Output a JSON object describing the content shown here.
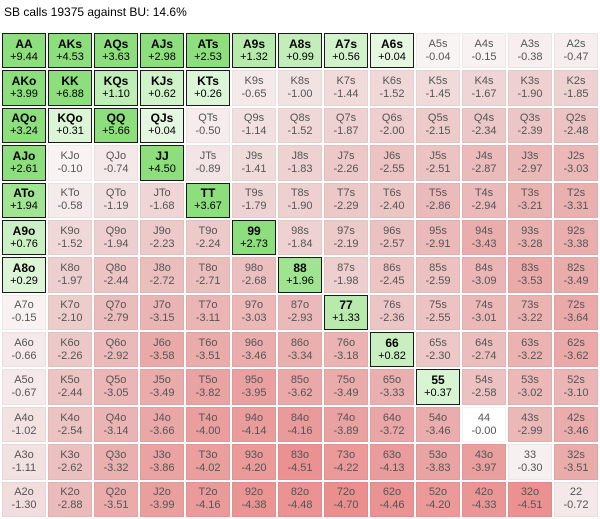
{
  "title": "SB calls 19375 against BU: 14.6%",
  "colors": {
    "positive_green": "#7ddc6a",
    "negative_red": "#e97d7d",
    "neutral": "#f7f0f0",
    "border": "#1a1a1a"
  },
  "grid": {
    "rows": [
      [
        {
          "hand": "AA",
          "ev": "+9.44"
        },
        {
          "hand": "AKs",
          "ev": "+4.53"
        },
        {
          "hand": "AQs",
          "ev": "+3.63"
        },
        {
          "hand": "AJs",
          "ev": "+2.98"
        },
        {
          "hand": "ATs",
          "ev": "+2.53"
        },
        {
          "hand": "A9s",
          "ev": "+1.32"
        },
        {
          "hand": "A8s",
          "ev": "+0.99"
        },
        {
          "hand": "A7s",
          "ev": "+0.56"
        },
        {
          "hand": "A6s",
          "ev": "+0.04"
        },
        {
          "hand": "A5s",
          "ev": "-0.04"
        },
        {
          "hand": "A4s",
          "ev": "-0.15"
        },
        {
          "hand": "A3s",
          "ev": "-0.38"
        },
        {
          "hand": "A2s",
          "ev": "-0.47"
        }
      ],
      [
        {
          "hand": "AKo",
          "ev": "+3.99"
        },
        {
          "hand": "KK",
          "ev": "+6.88"
        },
        {
          "hand": "KQs",
          "ev": "+1.10"
        },
        {
          "hand": "KJs",
          "ev": "+0.62"
        },
        {
          "hand": "KTs",
          "ev": "+0.26"
        },
        {
          "hand": "K9s",
          "ev": "-0.65"
        },
        {
          "hand": "K8s",
          "ev": "-1.00"
        },
        {
          "hand": "K7s",
          "ev": "-1.44"
        },
        {
          "hand": "K6s",
          "ev": "-1.52"
        },
        {
          "hand": "K5s",
          "ev": "-1.45"
        },
        {
          "hand": "K4s",
          "ev": "-1.67"
        },
        {
          "hand": "K3s",
          "ev": "-1.90"
        },
        {
          "hand": "K2s",
          "ev": "-1.85"
        }
      ],
      [
        {
          "hand": "AQo",
          "ev": "+3.24"
        },
        {
          "hand": "KQo",
          "ev": "+0.31"
        },
        {
          "hand": "QQ",
          "ev": "+5.66"
        },
        {
          "hand": "QJs",
          "ev": "+0.04"
        },
        {
          "hand": "QTs",
          "ev": "-0.50"
        },
        {
          "hand": "Q9s",
          "ev": "-1.14"
        },
        {
          "hand": "Q8s",
          "ev": "-1.52"
        },
        {
          "hand": "Q7s",
          "ev": "-1.87"
        },
        {
          "hand": "Q6s",
          "ev": "-2.00"
        },
        {
          "hand": "Q5s",
          "ev": "-2.15"
        },
        {
          "hand": "Q4s",
          "ev": "-2.34"
        },
        {
          "hand": "Q3s",
          "ev": "-2.39"
        },
        {
          "hand": "Q2s",
          "ev": "-2.48"
        }
      ],
      [
        {
          "hand": "AJo",
          "ev": "+2.61"
        },
        {
          "hand": "KJo",
          "ev": "-0.10"
        },
        {
          "hand": "QJo",
          "ev": "-0.74"
        },
        {
          "hand": "JJ",
          "ev": "+4.50"
        },
        {
          "hand": "JTs",
          "ev": "-0.89"
        },
        {
          "hand": "J9s",
          "ev": "-1.41"
        },
        {
          "hand": "J8s",
          "ev": "-1.83"
        },
        {
          "hand": "J7s",
          "ev": "-2.26"
        },
        {
          "hand": "J6s",
          "ev": "-2.55"
        },
        {
          "hand": "J5s",
          "ev": "-2.51"
        },
        {
          "hand": "J4s",
          "ev": "-2.87"
        },
        {
          "hand": "J3s",
          "ev": "-2.97"
        },
        {
          "hand": "J2s",
          "ev": "-3.03"
        }
      ],
      [
        {
          "hand": "ATo",
          "ev": "+1.94"
        },
        {
          "hand": "KTo",
          "ev": "-0.58"
        },
        {
          "hand": "QTo",
          "ev": "-1.19"
        },
        {
          "hand": "JTo",
          "ev": "-1.68"
        },
        {
          "hand": "TT",
          "ev": "+3.67"
        },
        {
          "hand": "T9s",
          "ev": "-1.79"
        },
        {
          "hand": "T8s",
          "ev": "-1.90"
        },
        {
          "hand": "T7s",
          "ev": "-2.29"
        },
        {
          "hand": "T6s",
          "ev": "-2.40"
        },
        {
          "hand": "T5s",
          "ev": "-2.86"
        },
        {
          "hand": "T4s",
          "ev": "-2.94"
        },
        {
          "hand": "T3s",
          "ev": "-3.21"
        },
        {
          "hand": "T2s",
          "ev": "-3.31"
        }
      ],
      [
        {
          "hand": "A9o",
          "ev": "+0.76"
        },
        {
          "hand": "K9o",
          "ev": "-1.52"
        },
        {
          "hand": "Q9o",
          "ev": "-1.94"
        },
        {
          "hand": "J9o",
          "ev": "-2.23"
        },
        {
          "hand": "T9o",
          "ev": "-2.24"
        },
        {
          "hand": "99",
          "ev": "+2.73"
        },
        {
          "hand": "98s",
          "ev": "-1.84"
        },
        {
          "hand": "97s",
          "ev": "-2.19"
        },
        {
          "hand": "96s",
          "ev": "-2.57"
        },
        {
          "hand": "95s",
          "ev": "-2.91"
        },
        {
          "hand": "94s",
          "ev": "-3.43"
        },
        {
          "hand": "93s",
          "ev": "-3.28"
        },
        {
          "hand": "92s",
          "ev": "-3.38"
        }
      ],
      [
        {
          "hand": "A8o",
          "ev": "+0.29"
        },
        {
          "hand": "K8o",
          "ev": "-1.97"
        },
        {
          "hand": "Q8o",
          "ev": "-2.44"
        },
        {
          "hand": "J8o",
          "ev": "-2.72"
        },
        {
          "hand": "T8o",
          "ev": "-2.71"
        },
        {
          "hand": "98o",
          "ev": "-2.68"
        },
        {
          "hand": "88",
          "ev": "+1.96"
        },
        {
          "hand": "87s",
          "ev": "-1.98"
        },
        {
          "hand": "86s",
          "ev": "-2.45"
        },
        {
          "hand": "85s",
          "ev": "-2.59"
        },
        {
          "hand": "84s",
          "ev": "-3.09"
        },
        {
          "hand": "83s",
          "ev": "-3.53"
        },
        {
          "hand": "82s",
          "ev": "-3.49"
        }
      ],
      [
        {
          "hand": "A7o",
          "ev": "-0.15"
        },
        {
          "hand": "K7o",
          "ev": "-2.10"
        },
        {
          "hand": "Q7o",
          "ev": "-2.79"
        },
        {
          "hand": "J7o",
          "ev": "-3.15"
        },
        {
          "hand": "T7o",
          "ev": "-3.11"
        },
        {
          "hand": "97o",
          "ev": "-3.03"
        },
        {
          "hand": "87o",
          "ev": "-2.93"
        },
        {
          "hand": "77",
          "ev": "+1.33"
        },
        {
          "hand": "76s",
          "ev": "-2.36"
        },
        {
          "hand": "75s",
          "ev": "-2.55"
        },
        {
          "hand": "74s",
          "ev": "-3.01"
        },
        {
          "hand": "73s",
          "ev": "-3.22"
        },
        {
          "hand": "72s",
          "ev": "-3.64"
        }
      ],
      [
        {
          "hand": "A6o",
          "ev": "-0.66"
        },
        {
          "hand": "K6o",
          "ev": "-2.26"
        },
        {
          "hand": "Q6o",
          "ev": "-2.92"
        },
        {
          "hand": "J6o",
          "ev": "-3.58"
        },
        {
          "hand": "T6o",
          "ev": "-3.51"
        },
        {
          "hand": "96o",
          "ev": "-3.46"
        },
        {
          "hand": "86o",
          "ev": "-3.34"
        },
        {
          "hand": "76o",
          "ev": "-3.18"
        },
        {
          "hand": "66",
          "ev": "+0.82"
        },
        {
          "hand": "65s",
          "ev": "-2.30"
        },
        {
          "hand": "64s",
          "ev": "-2.74"
        },
        {
          "hand": "63s",
          "ev": "-3.22"
        },
        {
          "hand": "62s",
          "ev": "-3.62"
        }
      ],
      [
        {
          "hand": "A5o",
          "ev": "-0.67"
        },
        {
          "hand": "K5o",
          "ev": "-2.44"
        },
        {
          "hand": "Q5o",
          "ev": "-3.05"
        },
        {
          "hand": "J5o",
          "ev": "-3.49"
        },
        {
          "hand": "T5o",
          "ev": "-3.82"
        },
        {
          "hand": "95o",
          "ev": "-3.95"
        },
        {
          "hand": "85o",
          "ev": "-3.62"
        },
        {
          "hand": "75o",
          "ev": "-3.49"
        },
        {
          "hand": "65o",
          "ev": "-3.33"
        },
        {
          "hand": "55",
          "ev": "+0.37"
        },
        {
          "hand": "54s",
          "ev": "-2.58"
        },
        {
          "hand": "53s",
          "ev": "-3.02"
        },
        {
          "hand": "52s",
          "ev": "-3.10"
        }
      ],
      [
        {
          "hand": "A4o",
          "ev": "-1.02"
        },
        {
          "hand": "K4o",
          "ev": "-2.54"
        },
        {
          "hand": "Q4o",
          "ev": "-3.14"
        },
        {
          "hand": "J4o",
          "ev": "-3.66"
        },
        {
          "hand": "T4o",
          "ev": "-4.00"
        },
        {
          "hand": "94o",
          "ev": "-4.14"
        },
        {
          "hand": "84o",
          "ev": "-4.16"
        },
        {
          "hand": "74o",
          "ev": "-3.89"
        },
        {
          "hand": "64o",
          "ev": "-3.72"
        },
        {
          "hand": "54o",
          "ev": "-3.46"
        },
        {
          "hand": "44",
          "ev": "-0.00"
        },
        {
          "hand": "43s",
          "ev": "-2.99"
        },
        {
          "hand": "42s",
          "ev": "-3.46"
        }
      ],
      [
        {
          "hand": "A3o",
          "ev": "-1.11"
        },
        {
          "hand": "K3o",
          "ev": "-2.62"
        },
        {
          "hand": "Q3o",
          "ev": "-3.32"
        },
        {
          "hand": "J3o",
          "ev": "-3.86"
        },
        {
          "hand": "T3o",
          "ev": "-4.02"
        },
        {
          "hand": "93o",
          "ev": "-4.20"
        },
        {
          "hand": "83o",
          "ev": "-4.51"
        },
        {
          "hand": "73o",
          "ev": "-4.22"
        },
        {
          "hand": "63o",
          "ev": "-4.13"
        },
        {
          "hand": "53o",
          "ev": "-3.83"
        },
        {
          "hand": "43o",
          "ev": "-3.97"
        },
        {
          "hand": "33",
          "ev": "-0.30"
        },
        {
          "hand": "32s",
          "ev": "-3.51"
        }
      ],
      [
        {
          "hand": "A2o",
          "ev": "-1.30"
        },
        {
          "hand": "K2o",
          "ev": "-2.88"
        },
        {
          "hand": "Q2o",
          "ev": "-3.51"
        },
        {
          "hand": "J2o",
          "ev": "-3.99"
        },
        {
          "hand": "T2o",
          "ev": "-4.16"
        },
        {
          "hand": "92o",
          "ev": "-4.38"
        },
        {
          "hand": "82o",
          "ev": "-4.48"
        },
        {
          "hand": "72o",
          "ev": "-4.70"
        },
        {
          "hand": "62o",
          "ev": "-4.46"
        },
        {
          "hand": "52o",
          "ev": "-4.20"
        },
        {
          "hand": "42o",
          "ev": "-4.33"
        },
        {
          "hand": "32o",
          "ev": "-4.51"
        },
        {
          "hand": "22",
          "ev": "-0.72"
        }
      ]
    ]
  }
}
